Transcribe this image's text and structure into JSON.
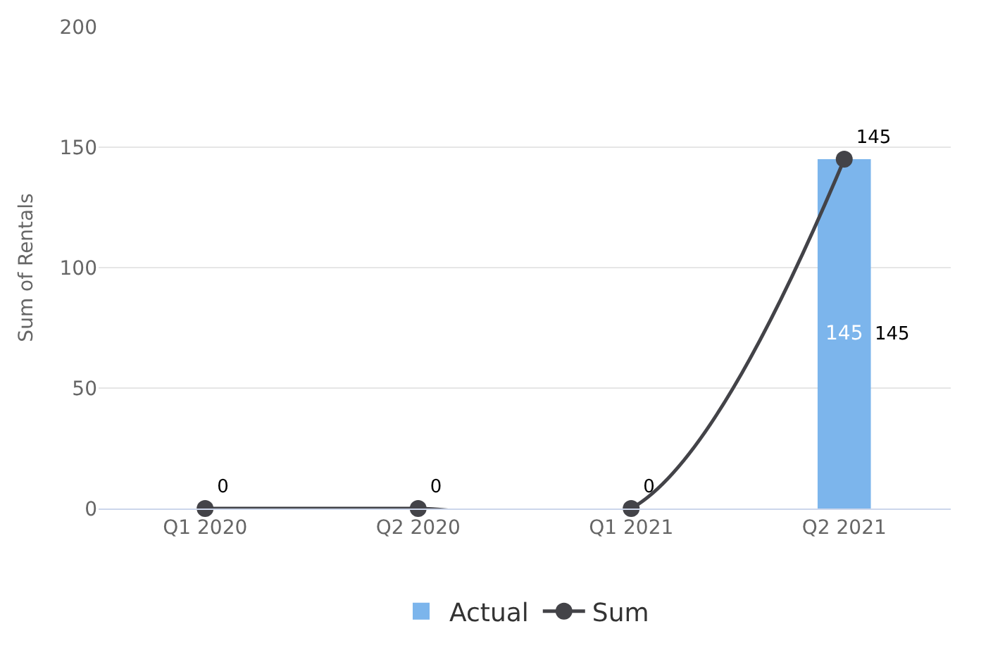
{
  "chart_data": {
    "type": "bar",
    "ylabel": "Sum of Rentals",
    "categories": [
      "Q1 2020",
      "Q2 2020",
      "Q1 2021",
      "Q2 2021"
    ],
    "series": [
      {
        "name": "Actual",
        "color": "#7cb5ec",
        "values": [
          null,
          null,
          null,
          145
        ],
        "value_labels": [
          null,
          null,
          null,
          "145"
        ]
      },
      {
        "name": "Sum",
        "type": "line",
        "color": "#434348",
        "values": [
          0,
          0,
          0,
          145
        ],
        "value_labels": [
          "0",
          "0",
          "0",
          "145"
        ],
        "marker": "circle"
      }
    ],
    "annotations": [
      "145"
    ],
    "ylim": [
      0,
      200
    ],
    "yticks": [
      0,
      50,
      100,
      150,
      200
    ],
    "grid": "y",
    "legend": "bottom"
  }
}
